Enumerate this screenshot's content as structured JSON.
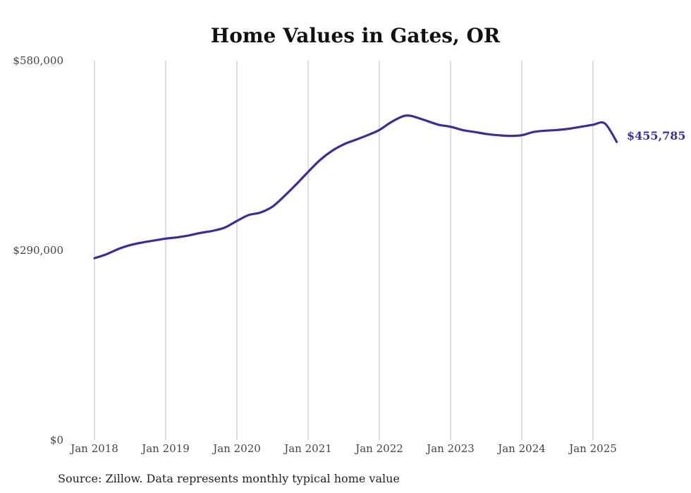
{
  "chart_data": {
    "type": "line",
    "title": "Home Values in Gates, OR",
    "xlabel": "",
    "ylabel": "",
    "ylim": [
      0,
      580000
    ],
    "y_ticks": [
      "$0",
      "$290,000",
      "$580,000"
    ],
    "y_tick_values": [
      0,
      290000,
      580000
    ],
    "x_ticks": [
      "Jan 2018",
      "Jan 2019",
      "Jan 2020",
      "Jan 2021",
      "Jan 2022",
      "Jan 2023",
      "Jan 2024",
      "Jan 2025"
    ],
    "x_tick_values": [
      "2018-01",
      "2019-01",
      "2020-01",
      "2021-01",
      "2022-01",
      "2023-01",
      "2024-01",
      "2025-01"
    ],
    "grid": "vertical",
    "series": [
      {
        "color": "#3b2f96",
        "x": [
          "2018-01",
          "2018-03",
          "2018-05",
          "2018-07",
          "2018-09",
          "2018-11",
          "2019-01",
          "2019-03",
          "2019-05",
          "2019-07",
          "2019-09",
          "2019-11",
          "2020-01",
          "2020-03",
          "2020-05",
          "2020-07",
          "2020-09",
          "2020-11",
          "2021-01",
          "2021-03",
          "2021-05",
          "2021-07",
          "2021-09",
          "2021-11",
          "2022-01",
          "2022-03",
          "2022-05",
          "2022-06",
          "2022-07",
          "2022-09",
          "2022-11",
          "2023-01",
          "2023-03",
          "2023-05",
          "2023-07",
          "2023-09",
          "2023-11",
          "2024-01",
          "2024-03",
          "2024-05",
          "2024-07",
          "2024-09",
          "2024-11",
          "2025-01",
          "2025-03",
          "2025-05"
        ],
        "values": [
          278000,
          284000,
          292000,
          298000,
          302000,
          305000,
          308000,
          310000,
          313000,
          317000,
          320000,
          325000,
          335000,
          344000,
          348000,
          357000,
          373000,
          391000,
          410000,
          428000,
          442000,
          452000,
          459000,
          466000,
          474000,
          486000,
          495000,
          496000,
          494000,
          488000,
          482000,
          479000,
          474000,
          471000,
          468000,
          466000,
          465000,
          466000,
          471000,
          473000,
          474000,
          476000,
          479000,
          482000,
          484000,
          455785
        ]
      }
    ],
    "end_label": "$455,785",
    "source_note": "Source: Zillow. Data represents monthly typical home value"
  }
}
